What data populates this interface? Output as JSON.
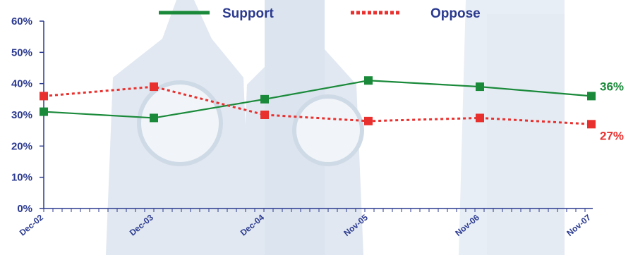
{
  "chart_data": {
    "type": "line",
    "categories": [
      "Dec-02",
      "Dec-03",
      "Dec-04",
      "Nov-05",
      "Nov-06",
      "Nov-07"
    ],
    "series": [
      {
        "name": "Support",
        "values": [
          31,
          29,
          35,
          41,
          39,
          36
        ],
        "color": "#1a8a3a",
        "style": "solid",
        "end_label": "36%"
      },
      {
        "name": "Oppose",
        "values": [
          36,
          39,
          30,
          28,
          29,
          27
        ],
        "color": "#e8312f",
        "style": "dotted",
        "end_label": "27%"
      }
    ],
    "y_ticks": [
      "0%",
      "10%",
      "20%",
      "30%",
      "40%",
      "50%",
      "60%"
    ],
    "ylim": [
      0,
      60
    ],
    "grid": false,
    "legend_position": "top",
    "axis_color": "#2b3a8f",
    "background": "watermark image of a clock tower"
  }
}
